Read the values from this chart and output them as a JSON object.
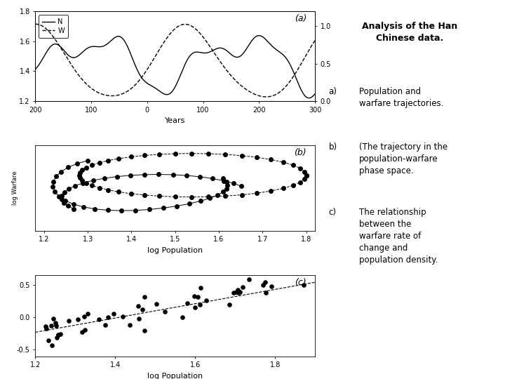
{
  "panel_a": {
    "title": "(a)",
    "xlabel": "Years",
    "xlim": [
      -200,
      300
    ],
    "ylim_left": [
      1.2,
      1.8
    ],
    "ylim_right": [
      0.0,
      1.2
    ],
    "yticks_left": [
      1.2,
      1.4,
      1.6,
      1.8
    ],
    "yticks_right": [
      0.0,
      0.5,
      1.0
    ],
    "xticks": [
      -200,
      -100,
      0,
      100,
      200,
      300
    ],
    "xtick_labels": [
      "200",
      "100",
      "0",
      "100",
      "200",
      "300"
    ]
  },
  "panel_b": {
    "title": "(b)",
    "xlabel": "log Population"
  },
  "panel_c": {
    "title": "(c)",
    "xlabel": "log Population",
    "xlim": [
      1.2,
      1.9
    ],
    "ylim": [
      -0.6,
      0.65
    ],
    "yticks": [
      -0.5,
      0.0,
      0.5
    ],
    "xticks": [
      1.2,
      1.4,
      1.6,
      1.8
    ]
  },
  "fig_width": 7.2,
  "fig_height": 5.4,
  "fig_dpi": 100
}
